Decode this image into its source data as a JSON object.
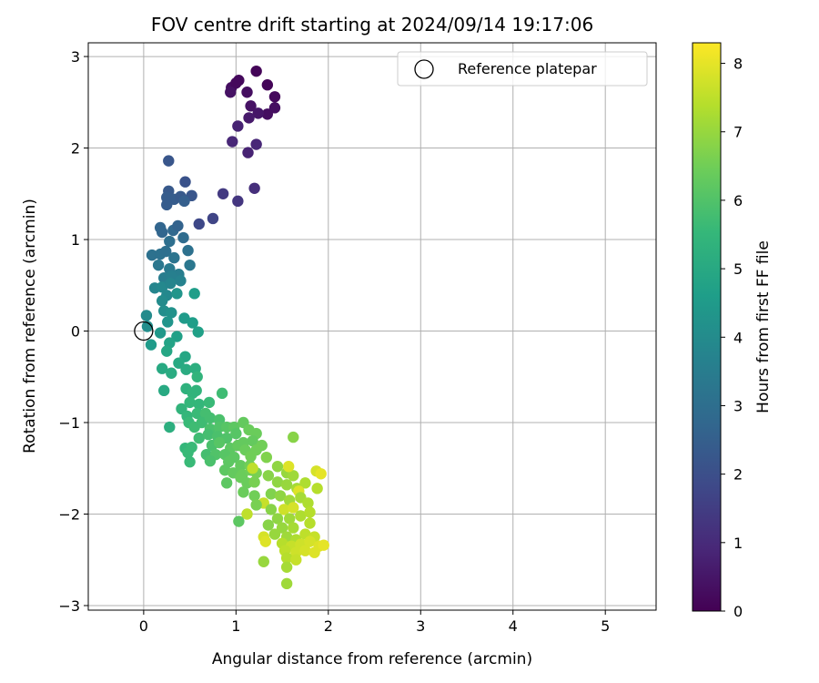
{
  "chart_data": {
    "type": "scatter",
    "title": "FOV centre drift starting at 2024/09/14 19:17:06",
    "xlabel": "Angular distance from reference (arcmin)",
    "ylabel": "Rotation from reference (arcmin)",
    "xlim": [
      -0.6,
      5.55
    ],
    "ylim": [
      -3.05,
      3.15
    ],
    "xticks": [
      0,
      1,
      2,
      3,
      4,
      5
    ],
    "yticks": [
      -3,
      -2,
      -1,
      0,
      1,
      2,
      3
    ],
    "grid": true,
    "legend": {
      "placement": "top-right",
      "entries": [
        "Reference platepar"
      ]
    },
    "reference_point": {
      "label": "Reference platepar",
      "x": 0.0,
      "y": 0.0
    },
    "colorbar": {
      "label": "Hours from first FF file",
      "colormap": "viridis",
      "range": [
        0,
        8.3
      ],
      "ticks": [
        0,
        1,
        2,
        3,
        4,
        5,
        6,
        7,
        8
      ]
    },
    "series": [
      {
        "color_value": "hours",
        "points": [
          {
            "x": 1.22,
            "y": 2.84,
            "h": 0.1
          },
          {
            "x": 1.03,
            "y": 2.74,
            "h": 0.2
          },
          {
            "x": 1.34,
            "y": 2.69,
            "h": 0.1
          },
          {
            "x": 0.95,
            "y": 2.66,
            "h": 0.3
          },
          {
            "x": 1.0,
            "y": 2.71,
            "h": 0.2
          },
          {
            "x": 1.12,
            "y": 2.61,
            "h": 0.3
          },
          {
            "x": 0.94,
            "y": 2.61,
            "h": 0.4
          },
          {
            "x": 1.42,
            "y": 2.56,
            "h": 0.2
          },
          {
            "x": 1.16,
            "y": 2.46,
            "h": 0.4
          },
          {
            "x": 1.42,
            "y": 2.44,
            "h": 0.3
          },
          {
            "x": 1.34,
            "y": 2.37,
            "h": 0.3
          },
          {
            "x": 1.24,
            "y": 2.38,
            "h": 0.5
          },
          {
            "x": 1.14,
            "y": 2.33,
            "h": 0.6
          },
          {
            "x": 1.02,
            "y": 2.24,
            "h": 0.8
          },
          {
            "x": 0.96,
            "y": 2.07,
            "h": 0.9
          },
          {
            "x": 1.22,
            "y": 2.04,
            "h": 0.9
          },
          {
            "x": 1.13,
            "y": 1.95,
            "h": 0.8
          },
          {
            "x": 1.2,
            "y": 1.56,
            "h": 1.1
          },
          {
            "x": 0.86,
            "y": 1.5,
            "h": 1.4
          },
          {
            "x": 1.02,
            "y": 1.42,
            "h": 1.3
          },
          {
            "x": 0.75,
            "y": 1.23,
            "h": 1.7
          },
          {
            "x": 0.6,
            "y": 1.17,
            "h": 1.8
          },
          {
            "x": 0.27,
            "y": 1.86,
            "h": 2.2
          },
          {
            "x": 0.45,
            "y": 1.63,
            "h": 2.1
          },
          {
            "x": 0.27,
            "y": 1.53,
            "h": 2.3
          },
          {
            "x": 0.52,
            "y": 1.48,
            "h": 2.2
          },
          {
            "x": 0.25,
            "y": 1.46,
            "h": 2.4
          },
          {
            "x": 0.33,
            "y": 1.44,
            "h": 2.4
          },
          {
            "x": 0.4,
            "y": 1.47,
            "h": 2.3
          },
          {
            "x": 0.44,
            "y": 1.42,
            "h": 2.5
          },
          {
            "x": 0.25,
            "y": 1.38,
            "h": 2.4
          },
          {
            "x": 0.18,
            "y": 1.13,
            "h": 2.7
          },
          {
            "x": 0.32,
            "y": 1.1,
            "h": 2.8
          },
          {
            "x": 0.37,
            "y": 1.15,
            "h": 2.6
          },
          {
            "x": 0.43,
            "y": 1.02,
            "h": 2.9
          },
          {
            "x": 0.2,
            "y": 1.08,
            "h": 2.7
          },
          {
            "x": 0.28,
            "y": 0.98,
            "h": 3.0
          },
          {
            "x": 0.09,
            "y": 0.83,
            "h": 3.1
          },
          {
            "x": 0.18,
            "y": 0.84,
            "h": 3.1
          },
          {
            "x": 0.24,
            "y": 0.87,
            "h": 3.0
          },
          {
            "x": 0.33,
            "y": 0.8,
            "h": 3.2
          },
          {
            "x": 0.48,
            "y": 0.88,
            "h": 3.1
          },
          {
            "x": 0.16,
            "y": 0.72,
            "h": 3.3
          },
          {
            "x": 0.28,
            "y": 0.68,
            "h": 3.4
          },
          {
            "x": 0.5,
            "y": 0.72,
            "h": 3.3
          },
          {
            "x": 0.38,
            "y": 0.62,
            "h": 3.5
          },
          {
            "x": 0.22,
            "y": 0.58,
            "h": 3.5
          },
          {
            "x": 0.3,
            "y": 0.6,
            "h": 3.6
          },
          {
            "x": 0.4,
            "y": 0.55,
            "h": 3.7
          },
          {
            "x": 0.12,
            "y": 0.47,
            "h": 3.8
          },
          {
            "x": 0.2,
            "y": 0.48,
            "h": 3.9
          },
          {
            "x": 0.29,
            "y": 0.52,
            "h": 3.8
          },
          {
            "x": 0.25,
            "y": 0.39,
            "h": 3.9
          },
          {
            "x": 0.36,
            "y": 0.41,
            "h": 4.3
          },
          {
            "x": 0.2,
            "y": 0.33,
            "h": 4.0
          },
          {
            "x": 0.22,
            "y": 0.22,
            "h": 4.1
          },
          {
            "x": 0.3,
            "y": 0.2,
            "h": 4.2
          },
          {
            "x": 0.26,
            "y": 0.1,
            "h": 4.3
          },
          {
            "x": 0.03,
            "y": 0.17,
            "h": 4.0
          },
          {
            "x": 0.04,
            "y": 0.05,
            "h": 4.1
          },
          {
            "x": 0.55,
            "y": 0.41,
            "h": 4.6
          },
          {
            "x": 0.44,
            "y": 0.14,
            "h": 4.5
          },
          {
            "x": 0.53,
            "y": 0.09,
            "h": 4.6
          },
          {
            "x": 0.59,
            "y": -0.01,
            "h": 4.7
          },
          {
            "x": 0.36,
            "y": -0.06,
            "h": 4.7
          },
          {
            "x": 0.28,
            "y": -0.13,
            "h": 4.8
          },
          {
            "x": 0.08,
            "y": -0.15,
            "h": 4.5
          },
          {
            "x": 0.18,
            "y": -0.02,
            "h": 4.4
          },
          {
            "x": 0.25,
            "y": -0.22,
            "h": 4.9
          },
          {
            "x": 0.45,
            "y": -0.28,
            "h": 4.9
          },
          {
            "x": 0.38,
            "y": -0.35,
            "h": 5.0
          },
          {
            "x": 0.46,
            "y": -0.42,
            "h": 5.1
          },
          {
            "x": 0.2,
            "y": -0.41,
            "h": 5.0
          },
          {
            "x": 0.3,
            "y": -0.46,
            "h": 5.1
          },
          {
            "x": 0.56,
            "y": -0.41,
            "h": 5.2
          },
          {
            "x": 0.58,
            "y": -0.5,
            "h": 5.4
          },
          {
            "x": 0.46,
            "y": -0.63,
            "h": 5.3
          },
          {
            "x": 0.22,
            "y": -0.65,
            "h": 5.0
          },
          {
            "x": 0.53,
            "y": -0.68,
            "h": 5.4
          },
          {
            "x": 0.57,
            "y": -0.65,
            "h": 5.4
          },
          {
            "x": 0.85,
            "y": -0.68,
            "h": 5.7
          },
          {
            "x": 0.41,
            "y": -0.85,
            "h": 5.4
          },
          {
            "x": 0.5,
            "y": -0.78,
            "h": 5.5
          },
          {
            "x": 0.6,
            "y": -0.8,
            "h": 5.5
          },
          {
            "x": 0.71,
            "y": -0.78,
            "h": 5.6
          },
          {
            "x": 0.47,
            "y": -0.93,
            "h": 5.5
          },
          {
            "x": 0.58,
            "y": -0.9,
            "h": 5.6
          },
          {
            "x": 0.67,
            "y": -0.9,
            "h": 5.8
          },
          {
            "x": 0.49,
            "y": -1.0,
            "h": 5.6
          },
          {
            "x": 0.55,
            "y": -1.05,
            "h": 5.7
          },
          {
            "x": 0.63,
            "y": -1.0,
            "h": 5.7
          },
          {
            "x": 0.72,
            "y": -0.95,
            "h": 5.8
          },
          {
            "x": 0.82,
            "y": -0.97,
            "h": 5.9
          },
          {
            "x": 0.28,
            "y": -1.05,
            "h": 5.2
          },
          {
            "x": 0.72,
            "y": -1.07,
            "h": 5.9
          },
          {
            "x": 0.82,
            "y": -1.05,
            "h": 6.0
          },
          {
            "x": 0.9,
            "y": -1.05,
            "h": 6.1
          },
          {
            "x": 0.98,
            "y": -1.05,
            "h": 6.2
          },
          {
            "x": 1.08,
            "y": -1.0,
            "h": 6.3
          },
          {
            "x": 1.14,
            "y": -1.08,
            "h": 6.4
          },
          {
            "x": 1.22,
            "y": -1.12,
            "h": 6.4
          },
          {
            "x": 0.6,
            "y": -1.17,
            "h": 5.7
          },
          {
            "x": 0.7,
            "y": -1.13,
            "h": 5.8
          },
          {
            "x": 0.8,
            "y": -1.15,
            "h": 5.9
          },
          {
            "x": 0.9,
            "y": -1.17,
            "h": 6.0
          },
          {
            "x": 1.0,
            "y": -1.12,
            "h": 6.1
          },
          {
            "x": 1.18,
            "y": -1.2,
            "h": 6.3
          },
          {
            "x": 1.28,
            "y": -1.25,
            "h": 6.5
          },
          {
            "x": 0.45,
            "y": -1.28,
            "h": 5.5
          },
          {
            "x": 0.52,
            "y": -1.27,
            "h": 5.6
          },
          {
            "x": 0.74,
            "y": -1.25,
            "h": 5.9
          },
          {
            "x": 0.82,
            "y": -1.22,
            "h": 6.1
          },
          {
            "x": 0.94,
            "y": -1.28,
            "h": 6.2
          },
          {
            "x": 1.02,
            "y": -1.25,
            "h": 6.3
          },
          {
            "x": 1.08,
            "y": -1.22,
            "h": 6.3
          },
          {
            "x": 0.48,
            "y": -1.33,
            "h": 5.6
          },
          {
            "x": 0.68,
            "y": -1.35,
            "h": 5.8
          },
          {
            "x": 0.78,
            "y": -1.35,
            "h": 6.0
          },
          {
            "x": 0.88,
            "y": -1.35,
            "h": 6.1
          },
          {
            "x": 0.98,
            "y": -1.38,
            "h": 6.2
          },
          {
            "x": 1.1,
            "y": -1.3,
            "h": 6.4
          },
          {
            "x": 1.16,
            "y": -1.37,
            "h": 6.5
          },
          {
            "x": 1.22,
            "y": -1.3,
            "h": 6.5
          },
          {
            "x": 1.33,
            "y": -1.38,
            "h": 6.7
          },
          {
            "x": 1.62,
            "y": -1.16,
            "h": 6.8
          },
          {
            "x": 0.5,
            "y": -1.43,
            "h": 5.6
          },
          {
            "x": 0.72,
            "y": -1.42,
            "h": 5.9
          },
          {
            "x": 0.92,
            "y": -1.43,
            "h": 6.2
          },
          {
            "x": 1.05,
            "y": -1.47,
            "h": 6.3
          },
          {
            "x": 1.15,
            "y": -1.47,
            "h": 6.5
          },
          {
            "x": 1.22,
            "y": -1.55,
            "h": 6.6
          },
          {
            "x": 1.45,
            "y": -1.48,
            "h": 6.9
          },
          {
            "x": 0.88,
            "y": -1.52,
            "h": 6.2
          },
          {
            "x": 0.97,
            "y": -1.55,
            "h": 6.3
          },
          {
            "x": 1.07,
            "y": -1.57,
            "h": 6.4
          },
          {
            "x": 1.16,
            "y": -1.52,
            "h": 6.5
          },
          {
            "x": 1.35,
            "y": -1.58,
            "h": 6.8
          },
          {
            "x": 1.55,
            "y": -1.55,
            "h": 7.0
          },
          {
            "x": 1.62,
            "y": -1.58,
            "h": 7.1
          },
          {
            "x": 1.18,
            "y": -1.5,
            "h": 7.5
          },
          {
            "x": 1.57,
            "y": -1.48,
            "h": 7.9
          },
          {
            "x": 1.87,
            "y": -1.53,
            "h": 7.8
          },
          {
            "x": 1.92,
            "y": -1.56,
            "h": 8.0
          },
          {
            "x": 0.9,
            "y": -1.66,
            "h": 6.2
          },
          {
            "x": 1.05,
            "y": -1.6,
            "h": 6.4
          },
          {
            "x": 1.12,
            "y": -1.66,
            "h": 6.4
          },
          {
            "x": 1.2,
            "y": -1.65,
            "h": 6.6
          },
          {
            "x": 1.45,
            "y": -1.65,
            "h": 6.9
          },
          {
            "x": 1.55,
            "y": -1.68,
            "h": 7.0
          },
          {
            "x": 1.66,
            "y": -1.72,
            "h": 7.2
          },
          {
            "x": 1.75,
            "y": -1.66,
            "h": 7.3
          },
          {
            "x": 1.88,
            "y": -1.72,
            "h": 7.4
          },
          {
            "x": 1.68,
            "y": -1.75,
            "h": 7.9
          },
          {
            "x": 1.08,
            "y": -1.76,
            "h": 6.4
          },
          {
            "x": 1.2,
            "y": -1.8,
            "h": 6.5
          },
          {
            "x": 1.38,
            "y": -1.78,
            "h": 6.7
          },
          {
            "x": 1.48,
            "y": -1.8,
            "h": 6.9
          },
          {
            "x": 1.58,
            "y": -1.85,
            "h": 7.1
          },
          {
            "x": 1.7,
            "y": -1.82,
            "h": 7.2
          },
          {
            "x": 1.78,
            "y": -1.88,
            "h": 7.3
          },
          {
            "x": 1.3,
            "y": -1.88,
            "h": 7.6
          },
          {
            "x": 1.52,
            "y": -1.95,
            "h": 7.7
          },
          {
            "x": 1.62,
            "y": -1.93,
            "h": 7.8
          },
          {
            "x": 1.22,
            "y": -1.9,
            "h": 6.6
          },
          {
            "x": 1.38,
            "y": -1.95,
            "h": 6.8
          },
          {
            "x": 1.45,
            "y": -2.05,
            "h": 6.9
          },
          {
            "x": 1.58,
            "y": -2.05,
            "h": 7.1
          },
          {
            "x": 1.7,
            "y": -2.02,
            "h": 7.3
          },
          {
            "x": 1.8,
            "y": -1.98,
            "h": 7.4
          },
          {
            "x": 1.12,
            "y": -2.0,
            "h": 7.5
          },
          {
            "x": 1.03,
            "y": -2.08,
            "h": 6.2
          },
          {
            "x": 1.35,
            "y": -2.12,
            "h": 6.8
          },
          {
            "x": 1.5,
            "y": -2.15,
            "h": 7.0
          },
          {
            "x": 1.62,
            "y": -2.15,
            "h": 7.2
          },
          {
            "x": 1.8,
            "y": -2.1,
            "h": 7.4
          },
          {
            "x": 1.3,
            "y": -2.25,
            "h": 7.8
          },
          {
            "x": 1.42,
            "y": -2.22,
            "h": 7.0
          },
          {
            "x": 1.55,
            "y": -2.25,
            "h": 7.1
          },
          {
            "x": 1.65,
            "y": -2.28,
            "h": 7.3
          },
          {
            "x": 1.75,
            "y": -2.22,
            "h": 7.5
          },
          {
            "x": 1.85,
            "y": -2.25,
            "h": 7.6
          },
          {
            "x": 1.32,
            "y": -2.3,
            "h": 7.9
          },
          {
            "x": 1.5,
            "y": -2.32,
            "h": 7.4
          },
          {
            "x": 1.6,
            "y": -2.35,
            "h": 7.6
          },
          {
            "x": 1.7,
            "y": -2.33,
            "h": 7.7
          },
          {
            "x": 1.8,
            "y": -2.3,
            "h": 7.8
          },
          {
            "x": 1.9,
            "y": -2.35,
            "h": 7.9
          },
          {
            "x": 1.95,
            "y": -2.34,
            "h": 8.0
          },
          {
            "x": 1.53,
            "y": -2.4,
            "h": 7.5
          },
          {
            "x": 1.65,
            "y": -2.42,
            "h": 7.7
          },
          {
            "x": 1.75,
            "y": -2.4,
            "h": 7.8
          },
          {
            "x": 1.85,
            "y": -2.42,
            "h": 7.9
          },
          {
            "x": 1.55,
            "y": -2.48,
            "h": 7.4
          },
          {
            "x": 1.65,
            "y": -2.5,
            "h": 7.6
          },
          {
            "x": 1.3,
            "y": -2.52,
            "h": 7.0
          },
          {
            "x": 1.55,
            "y": -2.58,
            "h": 7.2
          },
          {
            "x": 1.55,
            "y": -2.76,
            "h": 7.1
          }
        ]
      }
    ]
  }
}
